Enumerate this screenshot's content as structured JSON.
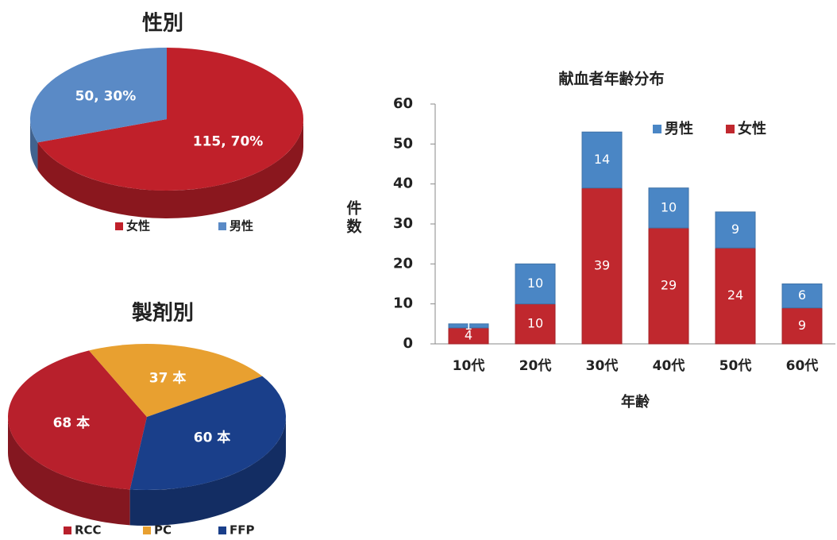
{
  "chart_data": [
    {
      "type": "pie",
      "title": "性別",
      "categories": [
        "女性",
        "男性"
      ],
      "values": [
        115,
        50
      ],
      "value_labels": [
        "115, 70%",
        "50, 30%"
      ],
      "colors": [
        "#c0202a",
        "#5a8ac6"
      ],
      "legend": "bottom"
    },
    {
      "type": "pie",
      "title": "製剤別",
      "categories": [
        "RCC",
        "PC",
        "FFP"
      ],
      "values": [
        68,
        37,
        60
      ],
      "value_labels": [
        "68 本",
        "37 本",
        "60 本"
      ],
      "colors": [
        "#b8202c",
        "#e8a030",
        "#1a3f8a"
      ],
      "legend": "bottom"
    },
    {
      "type": "bar",
      "stacked": true,
      "title": "献血者年齢分布",
      "xlabel": "年齢",
      "ylabel": "件数",
      "categories": [
        "10代",
        "20代",
        "30代",
        "40代",
        "50代",
        "60代"
      ],
      "series": [
        {
          "name": "男性",
          "color": "#4a86c5",
          "values": [
            1,
            10,
            14,
            10,
            9,
            6
          ]
        },
        {
          "name": "女性",
          "color": "#c0282e",
          "values": [
            4,
            10,
            39,
            29,
            24,
            9
          ]
        }
      ],
      "ylim": [
        0,
        60
      ],
      "yticks": [
        0,
        10,
        20,
        30,
        40,
        50,
        60
      ],
      "grid": false,
      "legend": "top-right"
    }
  ]
}
